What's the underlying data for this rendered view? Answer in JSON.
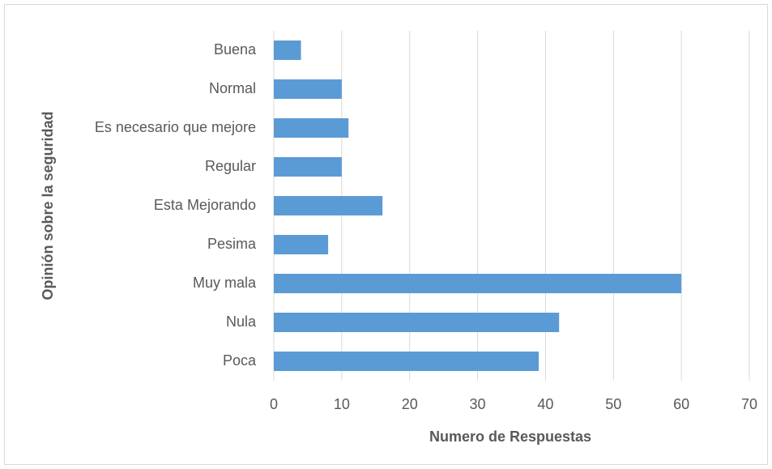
{
  "chart_data": {
    "type": "bar",
    "orientation": "horizontal",
    "x_label": "Numero de Respuestas",
    "y_label": "Opinión sobre la seguridad",
    "categories": [
      "Buena",
      "Normal",
      "Es necesario que mejore",
      "Regular",
      "Esta Mejorando",
      "Pesima",
      "Muy mala",
      "Nula",
      "Poca"
    ],
    "values": [
      4,
      10,
      11,
      10,
      16,
      8,
      60,
      42,
      39
    ],
    "color": "#5b9bd5",
    "xlim": [
      0,
      70
    ],
    "xticks": [
      0,
      10,
      20,
      30,
      40,
      50,
      60,
      70
    ],
    "grid": true
  }
}
